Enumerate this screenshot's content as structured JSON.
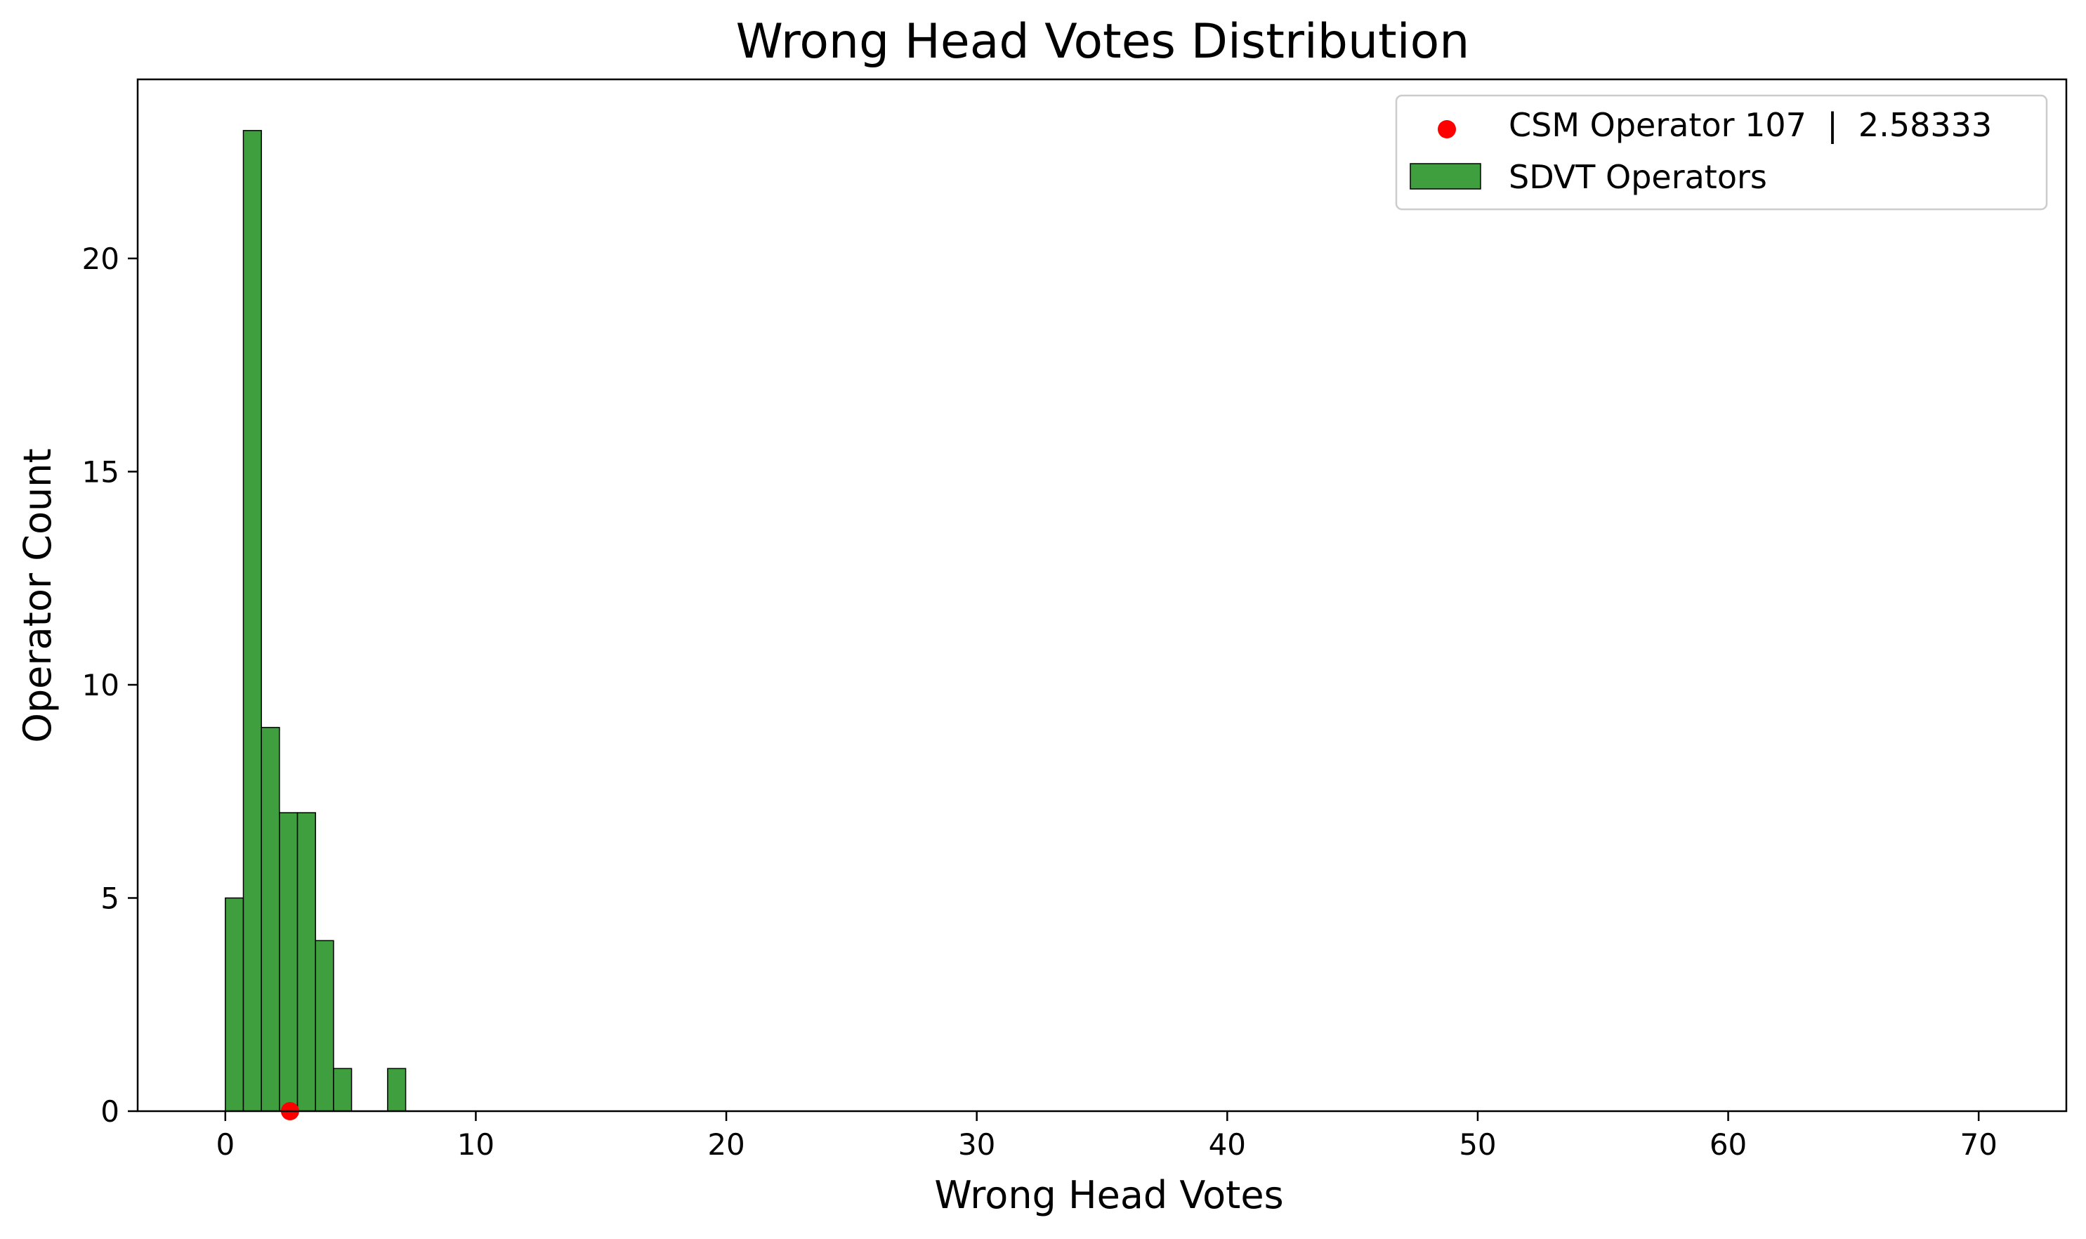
{
  "chart_data": {
    "type": "bar",
    "title": "Wrong Head Votes Distribution",
    "xlabel": "Wrong Head Votes",
    "ylabel": "Operator Count",
    "xlim": [
      -3.5,
      73.5
    ],
    "ylim": [
      0,
      24.2
    ],
    "xticks": [
      0,
      10,
      20,
      30,
      40,
      50,
      60,
      70
    ],
    "yticks": [
      0,
      5,
      10,
      15,
      20
    ],
    "grid": false,
    "legend_position": "top-right",
    "bin_width": 0.72,
    "bins_start": [
      0,
      0.72,
      1.44,
      2.16,
      2.88,
      3.6,
      4.32,
      6.48
    ],
    "values": [
      5,
      23,
      9,
      7,
      7,
      4,
      1,
      1
    ],
    "series": [
      {
        "name": "SDVT Operators",
        "kind": "histogram",
        "color": "#3f9f3f"
      },
      {
        "name": "CSM Operator 107  |  2.58333",
        "kind": "point",
        "x": 2.58333,
        "y": 0,
        "color": "#ff0000"
      }
    ]
  }
}
